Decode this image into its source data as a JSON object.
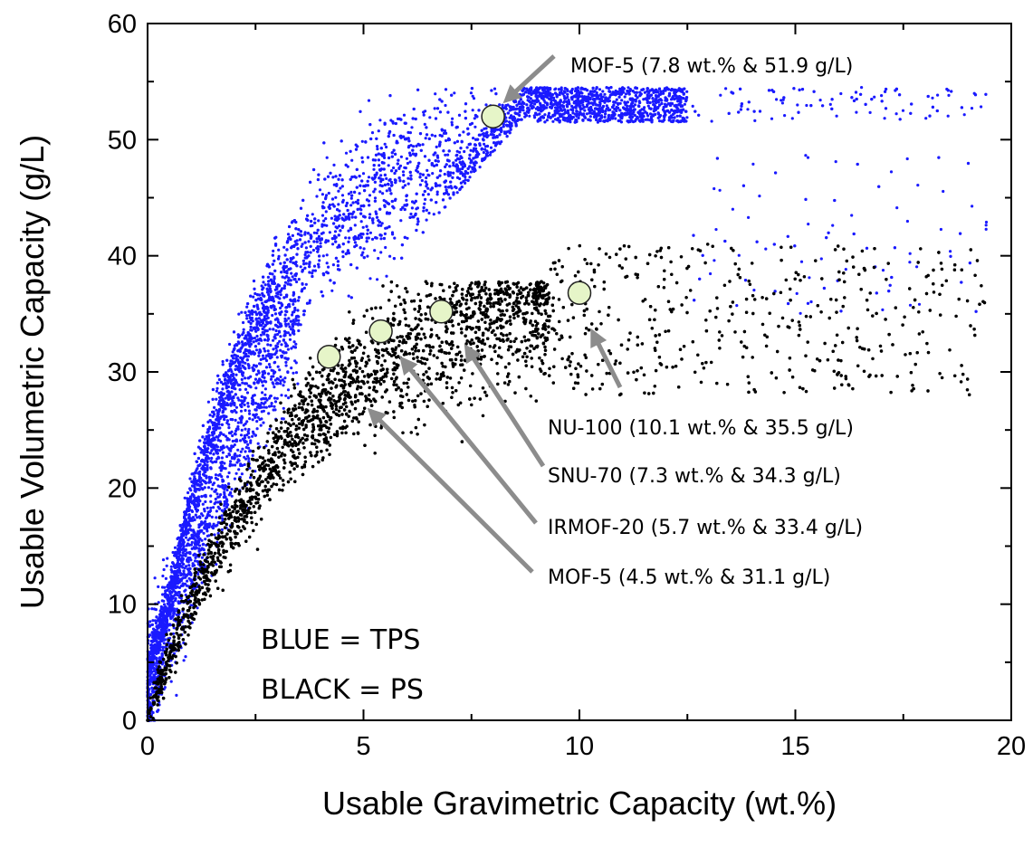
{
  "chart_data": {
    "type": "scatter",
    "xlabel": "Usable Gravimetric Capacity (wt.%)",
    "ylabel": "Usable Volumetric Capacity (g/L)",
    "xlim": [
      0,
      20
    ],
    "ylim": [
      0,
      60
    ],
    "x_ticks": [
      "0",
      "5",
      "10",
      "15",
      "20"
    ],
    "y_ticks": [
      "0",
      "10",
      "20",
      "30",
      "40",
      "50",
      "60"
    ],
    "grid": false,
    "series": [
      {
        "color": "#1a1aff"
      },
      {
        "color": "#000000"
      }
    ],
    "legend_lines": [
      "BLUE = TPS",
      "BLACK = PS"
    ],
    "highlighted_points": [
      {
        "x": 8.0,
        "y": 52.0,
        "label": "MOF-5 (7.8 wt.% & 51.9 g/L)"
      },
      {
        "x": 10.0,
        "y": 36.8,
        "label": "NU-100 (10.1 wt.% & 35.5 g/L)"
      },
      {
        "x": 6.8,
        "y": 35.2,
        "label": "SNU-70 (7.3 wt.% & 34.3 g/L)"
      },
      {
        "x": 5.4,
        "y": 33.5,
        "label": "IRMOF-20 (5.7 wt.% & 33.4 g/L)"
      },
      {
        "x": 4.2,
        "y": 31.3,
        "label": "MOF-5 (4.5 wt.% & 31.1 g/L)"
      }
    ],
    "highlight_color": "#e6f5c8",
    "arrow_color": "#8c8c8c"
  }
}
